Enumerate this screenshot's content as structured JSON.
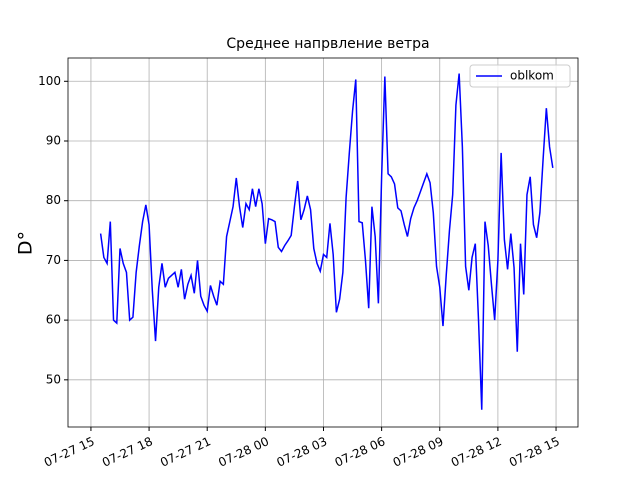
{
  "chart_data": {
    "type": "line",
    "title": "Среднее напрвление ветра",
    "y_label": "D°",
    "x": [
      "07-27 15:30",
      "07-27 15:40",
      "07-27 15:50",
      "07-27 16:00",
      "07-27 16:10",
      "07-27 16:20",
      "07-27 16:30",
      "07-27 16:40",
      "07-27 16:50",
      "07-27 17:00",
      "07-27 17:10",
      "07-27 17:20",
      "07-27 17:30",
      "07-27 17:40",
      "07-27 17:50",
      "07-27 18:00",
      "07-27 18:10",
      "07-27 18:20",
      "07-27 18:30",
      "07-27 18:40",
      "07-27 18:50",
      "07-27 19:00",
      "07-27 19:10",
      "07-27 19:20",
      "07-27 19:30",
      "07-27 19:40",
      "07-27 19:50",
      "07-27 20:00",
      "07-27 20:10",
      "07-27 20:20",
      "07-27 20:30",
      "07-27 20:40",
      "07-27 20:50",
      "07-27 21:00",
      "07-27 21:10",
      "07-27 21:20",
      "07-27 21:30",
      "07-27 21:40",
      "07-27 21:50",
      "07-27 22:00",
      "07-27 22:10",
      "07-27 22:20",
      "07-27 22:30",
      "07-27 22:40",
      "07-27 22:50",
      "07-27 23:00",
      "07-27 23:10",
      "07-27 23:20",
      "07-27 23:30",
      "07-27 23:40",
      "07-27 23:50",
      "07-28 00:00",
      "07-28 00:10",
      "07-28 00:20",
      "07-28 00:30",
      "07-28 00:40",
      "07-28 00:50",
      "07-28 01:00",
      "07-28 01:10",
      "07-28 01:20",
      "07-28 01:30",
      "07-28 01:40",
      "07-28 01:50",
      "07-28 02:00",
      "07-28 02:10",
      "07-28 02:20",
      "07-28 02:30",
      "07-28 02:40",
      "07-28 02:50",
      "07-28 03:00",
      "07-28 03:10",
      "07-28 03:20",
      "07-28 03:30",
      "07-28 03:40",
      "07-28 03:50",
      "07-28 04:00",
      "07-28 04:10",
      "07-28 04:20",
      "07-28 04:30",
      "07-28 04:40",
      "07-28 04:50",
      "07-28 05:00",
      "07-28 05:10",
      "07-28 05:20",
      "07-28 05:30",
      "07-28 05:40",
      "07-28 05:50",
      "07-28 06:00",
      "07-28 06:10",
      "07-28 06:20",
      "07-28 06:30",
      "07-28 06:40",
      "07-28 06:50",
      "07-28 07:00",
      "07-28 07:10",
      "07-28 07:20",
      "07-28 07:30",
      "07-28 07:40",
      "07-28 07:50",
      "07-28 08:00",
      "07-28 08:10",
      "07-28 08:20",
      "07-28 08:30",
      "07-28 08:40",
      "07-28 08:50",
      "07-28 09:00",
      "07-28 09:10",
      "07-28 09:20",
      "07-28 09:30",
      "07-28 09:40",
      "07-28 09:50",
      "07-28 10:00",
      "07-28 10:10",
      "07-28 10:20",
      "07-28 10:30",
      "07-28 10:40",
      "07-28 10:50",
      "07-28 11:00",
      "07-28 11:10",
      "07-28 11:20",
      "07-28 11:30",
      "07-28 11:40",
      "07-28 11:50",
      "07-28 12:00",
      "07-28 12:10",
      "07-28 12:20",
      "07-28 12:30",
      "07-28 12:40",
      "07-28 12:50",
      "07-28 13:00",
      "07-28 13:10",
      "07-28 13:20",
      "07-28 13:30",
      "07-28 13:40",
      "07-28 13:50",
      "07-28 14:00",
      "07-28 14:10",
      "07-28 14:20",
      "07-28 14:30",
      "07-28 14:40",
      "07-28 14:50"
    ],
    "series": [
      {
        "name": "oblkom",
        "color": "#0000ff",
        "values": [
          74.5,
          70.5,
          69.5,
          76.5,
          60,
          59.5,
          72,
          69.5,
          68,
          60,
          60.5,
          68,
          72.5,
          76.5,
          79.3,
          76,
          65,
          56.5,
          65.5,
          69.5,
          65.5,
          67,
          67.5,
          68,
          65.5,
          68.5,
          63.5,
          66,
          67.5,
          64.5,
          70,
          64,
          62.5,
          61.5,
          65.8,
          64,
          62.5,
          66.5,
          66,
          74,
          76.5,
          79,
          83.8,
          79,
          75.5,
          79.5,
          78.5,
          82,
          79,
          82,
          79.5,
          72.8,
          77,
          76.8,
          76.5,
          72.2,
          71.5,
          72.5,
          73.3,
          74.2,
          79,
          83.3,
          76.8,
          78.5,
          80.8,
          78.5,
          72,
          69.5,
          68.2,
          71,
          70.5,
          76.2,
          71,
          61.3,
          63.5,
          68,
          80.5,
          88,
          95,
          100.3,
          76.5,
          76.3,
          70,
          62,
          79,
          74,
          62.8,
          84,
          100.8,
          84.5,
          84,
          82.8,
          78.8,
          78.3,
          76,
          74,
          77,
          78.8,
          80,
          81.5,
          83,
          84.5,
          83,
          78,
          69,
          65.5,
          59,
          67.5,
          75,
          81,
          96,
          101.3,
          89,
          69,
          65,
          70.5,
          72.8,
          60,
          45,
          76.5,
          72.5,
          66,
          60,
          70,
          88,
          73.5,
          68.5,
          74.5,
          68.8,
          54.7,
          72.8,
          64.3,
          81,
          84,
          76,
          73.8,
          78,
          87,
          95.5,
          89,
          85.5
        ]
      }
    ],
    "xlim": [
      "07-27 13:49",
      "07-28 16:08"
    ],
    "xticks": [
      {
        "value": "07-27 15:00",
        "label": "07-27 15"
      },
      {
        "value": "07-27 18:00",
        "label": "07-27 18"
      },
      {
        "value": "07-27 21:00",
        "label": "07-27 21"
      },
      {
        "value": "07-28 00:00",
        "label": "07-28 00"
      },
      {
        "value": "07-28 03:00",
        "label": "07-28 03"
      },
      {
        "value": "07-28 06:00",
        "label": "07-28 06"
      },
      {
        "value": "07-28 09:00",
        "label": "07-28 09"
      },
      {
        "value": "07-28 12:00",
        "label": "07-28 12"
      },
      {
        "value": "07-28 15:00",
        "label": "07-28 15"
      }
    ],
    "ylim": [
      42.1,
      103.9
    ],
    "yticks": [
      50,
      60,
      70,
      80,
      90,
      100
    ],
    "grid": true,
    "legend": "upper right"
  }
}
